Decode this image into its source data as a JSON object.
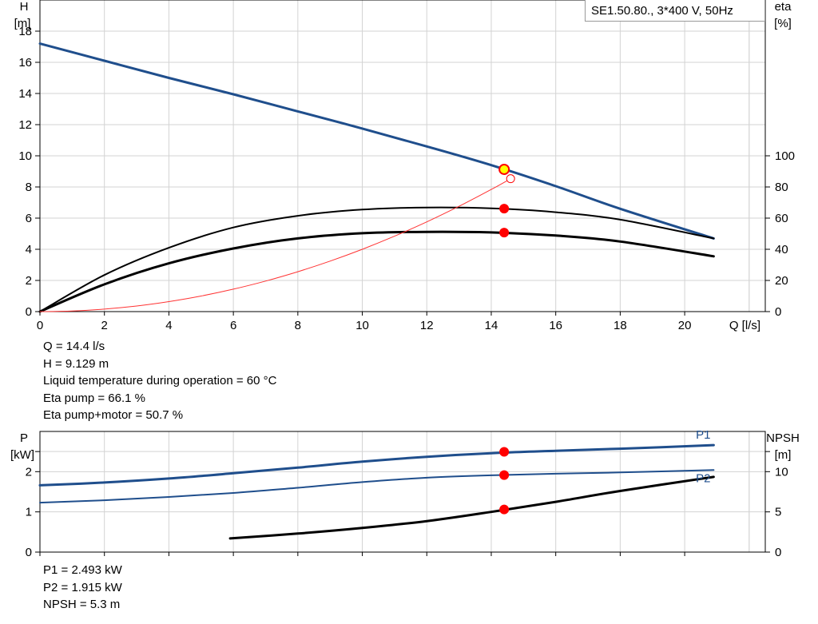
{
  "header_box": "SE1.50.80., 3*400 V, 50Hz",
  "top_info": [
    "Q = 14.4 l/s",
    "H = 9.129 m",
    "Liquid temperature during operation = 60 °C",
    "Eta pump = 66.1 %",
    "Eta pump+motor = 50.7 %"
  ],
  "bottom_info": [
    "P1 = 2.493 kW",
    "P2 = 1.915 kW",
    "NPSH = 5.3 m"
  ],
  "colors": {
    "blue": "#1f4e8c",
    "black": "#000000",
    "red": "#ff0000",
    "grid": "#d3d3d3",
    "yellow": "#ffff00"
  },
  "chart_data": [
    {
      "type": "line",
      "xlabel": "Q [l/s]",
      "xlim": [
        0,
        22.5
      ],
      "x_ticks": [
        0,
        2,
        4,
        6,
        8,
        10,
        12,
        14,
        16,
        18,
        20
      ],
      "y_left": {
        "label_line1": "H",
        "label_line2": "[m]",
        "lim": [
          0,
          20
        ],
        "ticks": [
          0,
          2,
          4,
          6,
          8,
          10,
          12,
          14,
          16,
          18
        ]
      },
      "y_right": {
        "label_line1": "eta",
        "label_line2": "[%]",
        "lim": [
          0,
          200
        ],
        "ticks": [
          0,
          20,
          40,
          60,
          80,
          100
        ]
      },
      "grid": true,
      "series": [
        {
          "id": "H",
          "axis": "left",
          "color": "#1f4e8c",
          "width": 3,
          "x": [
            0,
            2,
            4,
            6,
            8,
            10,
            12,
            14,
            16,
            18,
            20.9
          ],
          "y": [
            17.2,
            16.1,
            15.0,
            13.95,
            12.85,
            11.75,
            10.6,
            9.4,
            8.05,
            6.6,
            4.7
          ]
        },
        {
          "id": "eta_pump",
          "axis": "right",
          "color": "#000000",
          "width": 2,
          "x": [
            0,
            2,
            4,
            6,
            8,
            10,
            12,
            14,
            16,
            18,
            20.9
          ],
          "y": [
            0,
            23.5,
            41,
            54,
            61.5,
            65.5,
            66.8,
            66.3,
            63.8,
            59,
            47
          ]
        },
        {
          "id": "eta_total",
          "axis": "right",
          "color": "#000000",
          "width": 3,
          "x": [
            0,
            2,
            4,
            6,
            8,
            10,
            12,
            14,
            16,
            18,
            20.9
          ],
          "y": [
            0,
            17.5,
            31,
            40.5,
            47,
            50.3,
            51.2,
            50.8,
            48.8,
            45,
            35.5
          ]
        },
        {
          "id": "system_curve",
          "axis": "left",
          "color": "#ff3333",
          "width": 1,
          "x": [
            0,
            1,
            2,
            3,
            4,
            5,
            6,
            7,
            8,
            9,
            10,
            11,
            12,
            13,
            14,
            14.6
          ],
          "y": [
            0,
            0.04,
            0.16,
            0.36,
            0.64,
            1.0,
            1.44,
            1.96,
            2.56,
            3.24,
            4.0,
            4.84,
            5.76,
            6.76,
            7.84,
            8.53
          ]
        }
      ],
      "duty_points": [
        {
          "series": "H",
          "x": 14.4,
          "y": 9.129
        },
        {
          "series": "eta_pump",
          "x": 14.4,
          "y": 66.1
        },
        {
          "series": "eta_total",
          "x": 14.4,
          "y": 50.7
        }
      ]
    },
    {
      "type": "line",
      "xlim": [
        0,
        22.5
      ],
      "x_ticks": [
        0,
        2,
        4,
        6,
        8,
        10,
        12,
        14,
        16,
        18,
        20
      ],
      "y_left": {
        "label_line1": "P",
        "label_line2": "[kW]",
        "lim": [
          0,
          3
        ],
        "ticks": [
          0,
          1,
          2
        ]
      },
      "y_right": {
        "label_line1": "NPSH",
        "label_line2": "[m]",
        "lim": [
          0,
          15
        ],
        "ticks": [
          0,
          5,
          10
        ]
      },
      "grid": true,
      "series": [
        {
          "id": "P1",
          "name": "P1",
          "axis": "left",
          "color": "#1f4e8c",
          "width": 3,
          "x": [
            0,
            2,
            4,
            6,
            8,
            10,
            12,
            14,
            16,
            18,
            20.9
          ],
          "y": [
            1.66,
            1.73,
            1.83,
            1.96,
            2.1,
            2.25,
            2.37,
            2.46,
            2.52,
            2.57,
            2.66
          ]
        },
        {
          "id": "P2",
          "name": "P2",
          "axis": "left",
          "color": "#1f4e8c",
          "width": 2,
          "x": [
            0,
            2,
            4,
            6,
            8,
            10,
            12,
            14,
            16,
            18,
            20.9
          ],
          "y": [
            1.23,
            1.29,
            1.37,
            1.47,
            1.6,
            1.74,
            1.85,
            1.91,
            1.95,
            1.98,
            2.04
          ]
        },
        {
          "id": "NPSH",
          "axis": "right",
          "color": "#000000",
          "width": 3,
          "x": [
            5.9,
            8,
            10,
            12,
            14,
            16,
            18,
            20.9
          ],
          "y": [
            1.7,
            2.3,
            3.0,
            3.85,
            5.0,
            6.25,
            7.6,
            9.35
          ]
        }
      ],
      "duty_points": [
        {
          "series": "P1",
          "x": 14.4,
          "y": 2.493
        },
        {
          "series": "P2",
          "x": 14.4,
          "y": 1.915
        },
        {
          "series": "NPSH",
          "x": 14.4,
          "y": 5.3
        }
      ]
    }
  ]
}
